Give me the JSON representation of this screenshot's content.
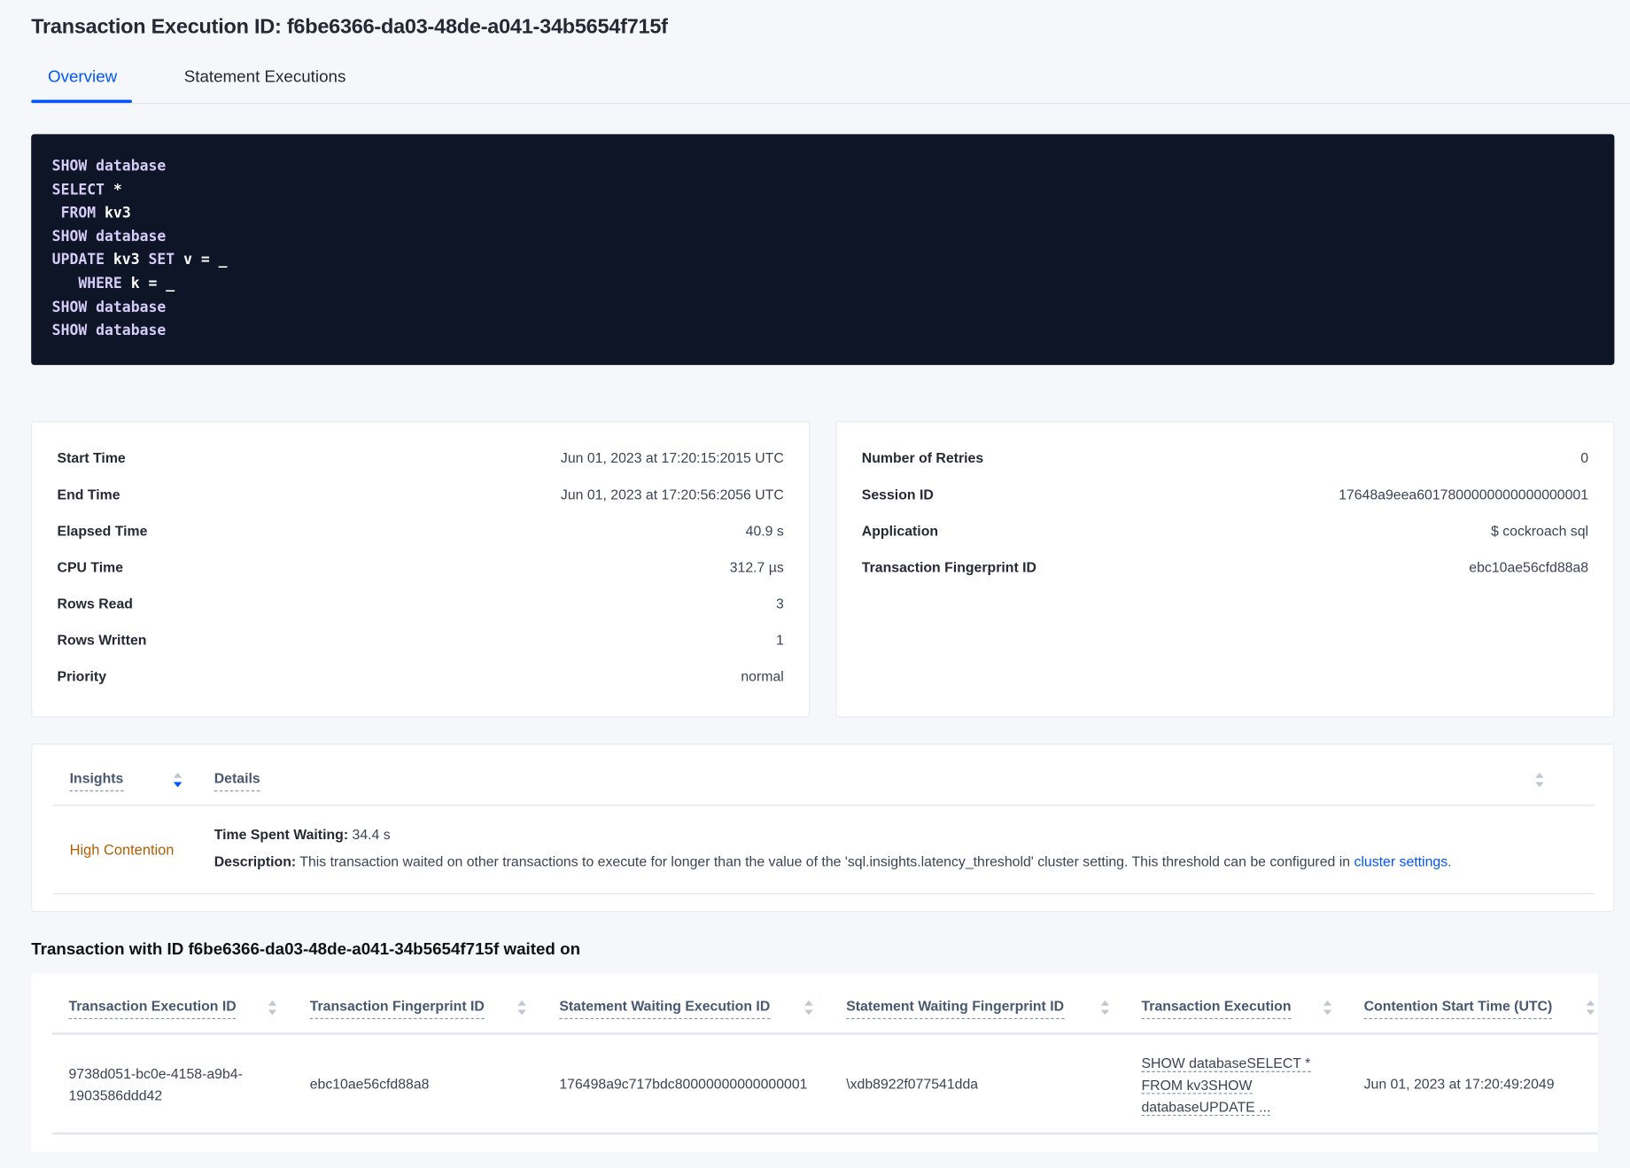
{
  "header": {
    "title": "Transaction Execution ID: f6be6366-da03-48de-a041-34b5654f715f"
  },
  "tabs": [
    {
      "label": "Overview",
      "active": true
    },
    {
      "label": "Statement Executions",
      "active": false
    }
  ],
  "sql": [
    [
      {
        "t": "SHOW",
        "k": true
      },
      {
        "t": " database",
        "k": true
      }
    ],
    [
      {
        "t": "SELECT",
        "k": true
      },
      {
        "t": " *",
        "k": false
      }
    ],
    [
      {
        "t": " FROM",
        "k": true
      },
      {
        "t": " kv3",
        "k": false
      }
    ],
    [
      {
        "t": "SHOW",
        "k": true
      },
      {
        "t": " database",
        "k": true
      }
    ],
    [
      {
        "t": "UPDATE",
        "k": true
      },
      {
        "t": " kv3 ",
        "k": false
      },
      {
        "t": "SET",
        "k": true
      },
      {
        "t": " v = _",
        "k": false
      }
    ],
    [
      {
        "t": "   WHERE",
        "k": true
      },
      {
        "t": " k = _",
        "k": false
      }
    ],
    [
      {
        "t": "SHOW",
        "k": true
      },
      {
        "t": " database",
        "k": true
      }
    ],
    [
      {
        "t": "SHOW",
        "k": true
      },
      {
        "t": " database",
        "k": true
      }
    ]
  ],
  "summary_left": [
    {
      "label": "Start Time",
      "value": "Jun 01, 2023 at 17:20:15:2015 UTC"
    },
    {
      "label": "End Time",
      "value": "Jun 01, 2023 at 17:20:56:2056 UTC"
    },
    {
      "label": "Elapsed Time",
      "value": "40.9 s"
    },
    {
      "label": "CPU Time",
      "value": "312.7 µs"
    },
    {
      "label": "Rows Read",
      "value": "3"
    },
    {
      "label": "Rows Written",
      "value": "1"
    },
    {
      "label": "Priority",
      "value": "normal"
    }
  ],
  "summary_right": [
    {
      "label": "Number of Retries",
      "value": "0"
    },
    {
      "label": "Session ID",
      "value": "17648a9eea6017800000000000000001"
    },
    {
      "label": "Application",
      "value": "$ cockroach sql"
    },
    {
      "label": "Transaction Fingerprint ID",
      "value": "ebc10ae56cfd88a8",
      "link": true
    }
  ],
  "insights": {
    "columns": [
      "Insights",
      "Details"
    ],
    "rows": [
      {
        "insight": "High Contention",
        "time_label": "Time Spent Waiting:",
        "time_value": " 34.4 s",
        "desc_label": "Description:",
        "desc_text": " This transaction waited on other transactions to execute for longer than the value of the 'sql.insights.latency_threshold' cluster setting. This threshold can be configured in ",
        "desc_link": "cluster settings",
        "desc_end": "."
      }
    ]
  },
  "waited_on": {
    "heading": "Transaction with ID f6be6366-da03-48de-a041-34b5654f715f waited on",
    "columns": [
      "Transaction Execution ID",
      "Transaction Fingerprint ID",
      "Statement Waiting Execution ID",
      "Statement Waiting Fingerprint ID",
      "Transaction Execution",
      "Contention Start Time (UTC)"
    ],
    "rows": [
      {
        "txn_exec_id_1": "9738d051-bc0e-4158-a9b4-",
        "txn_exec_id_2": "1903586ddd42",
        "txn_fingerprint": "ebc10ae56cfd88a8",
        "stmt_exec_id": "176498a9c717bdc80000000000000001",
        "stmt_fingerprint": "\\xdb8922f077541dda",
        "txn_exec_1": "SHOW databaseSELECT *",
        "txn_exec_2": "FROM kv3SHOW",
        "txn_exec_3": "databaseUPDATE ...",
        "contention_start": "Jun 01, 2023 at 17:20:49:2049"
      }
    ]
  },
  "colors": {
    "accent": "#0055ff",
    "code_bg": "#0d1526",
    "insight": "#b35d00",
    "page_bg": "#f5f7fa"
  }
}
